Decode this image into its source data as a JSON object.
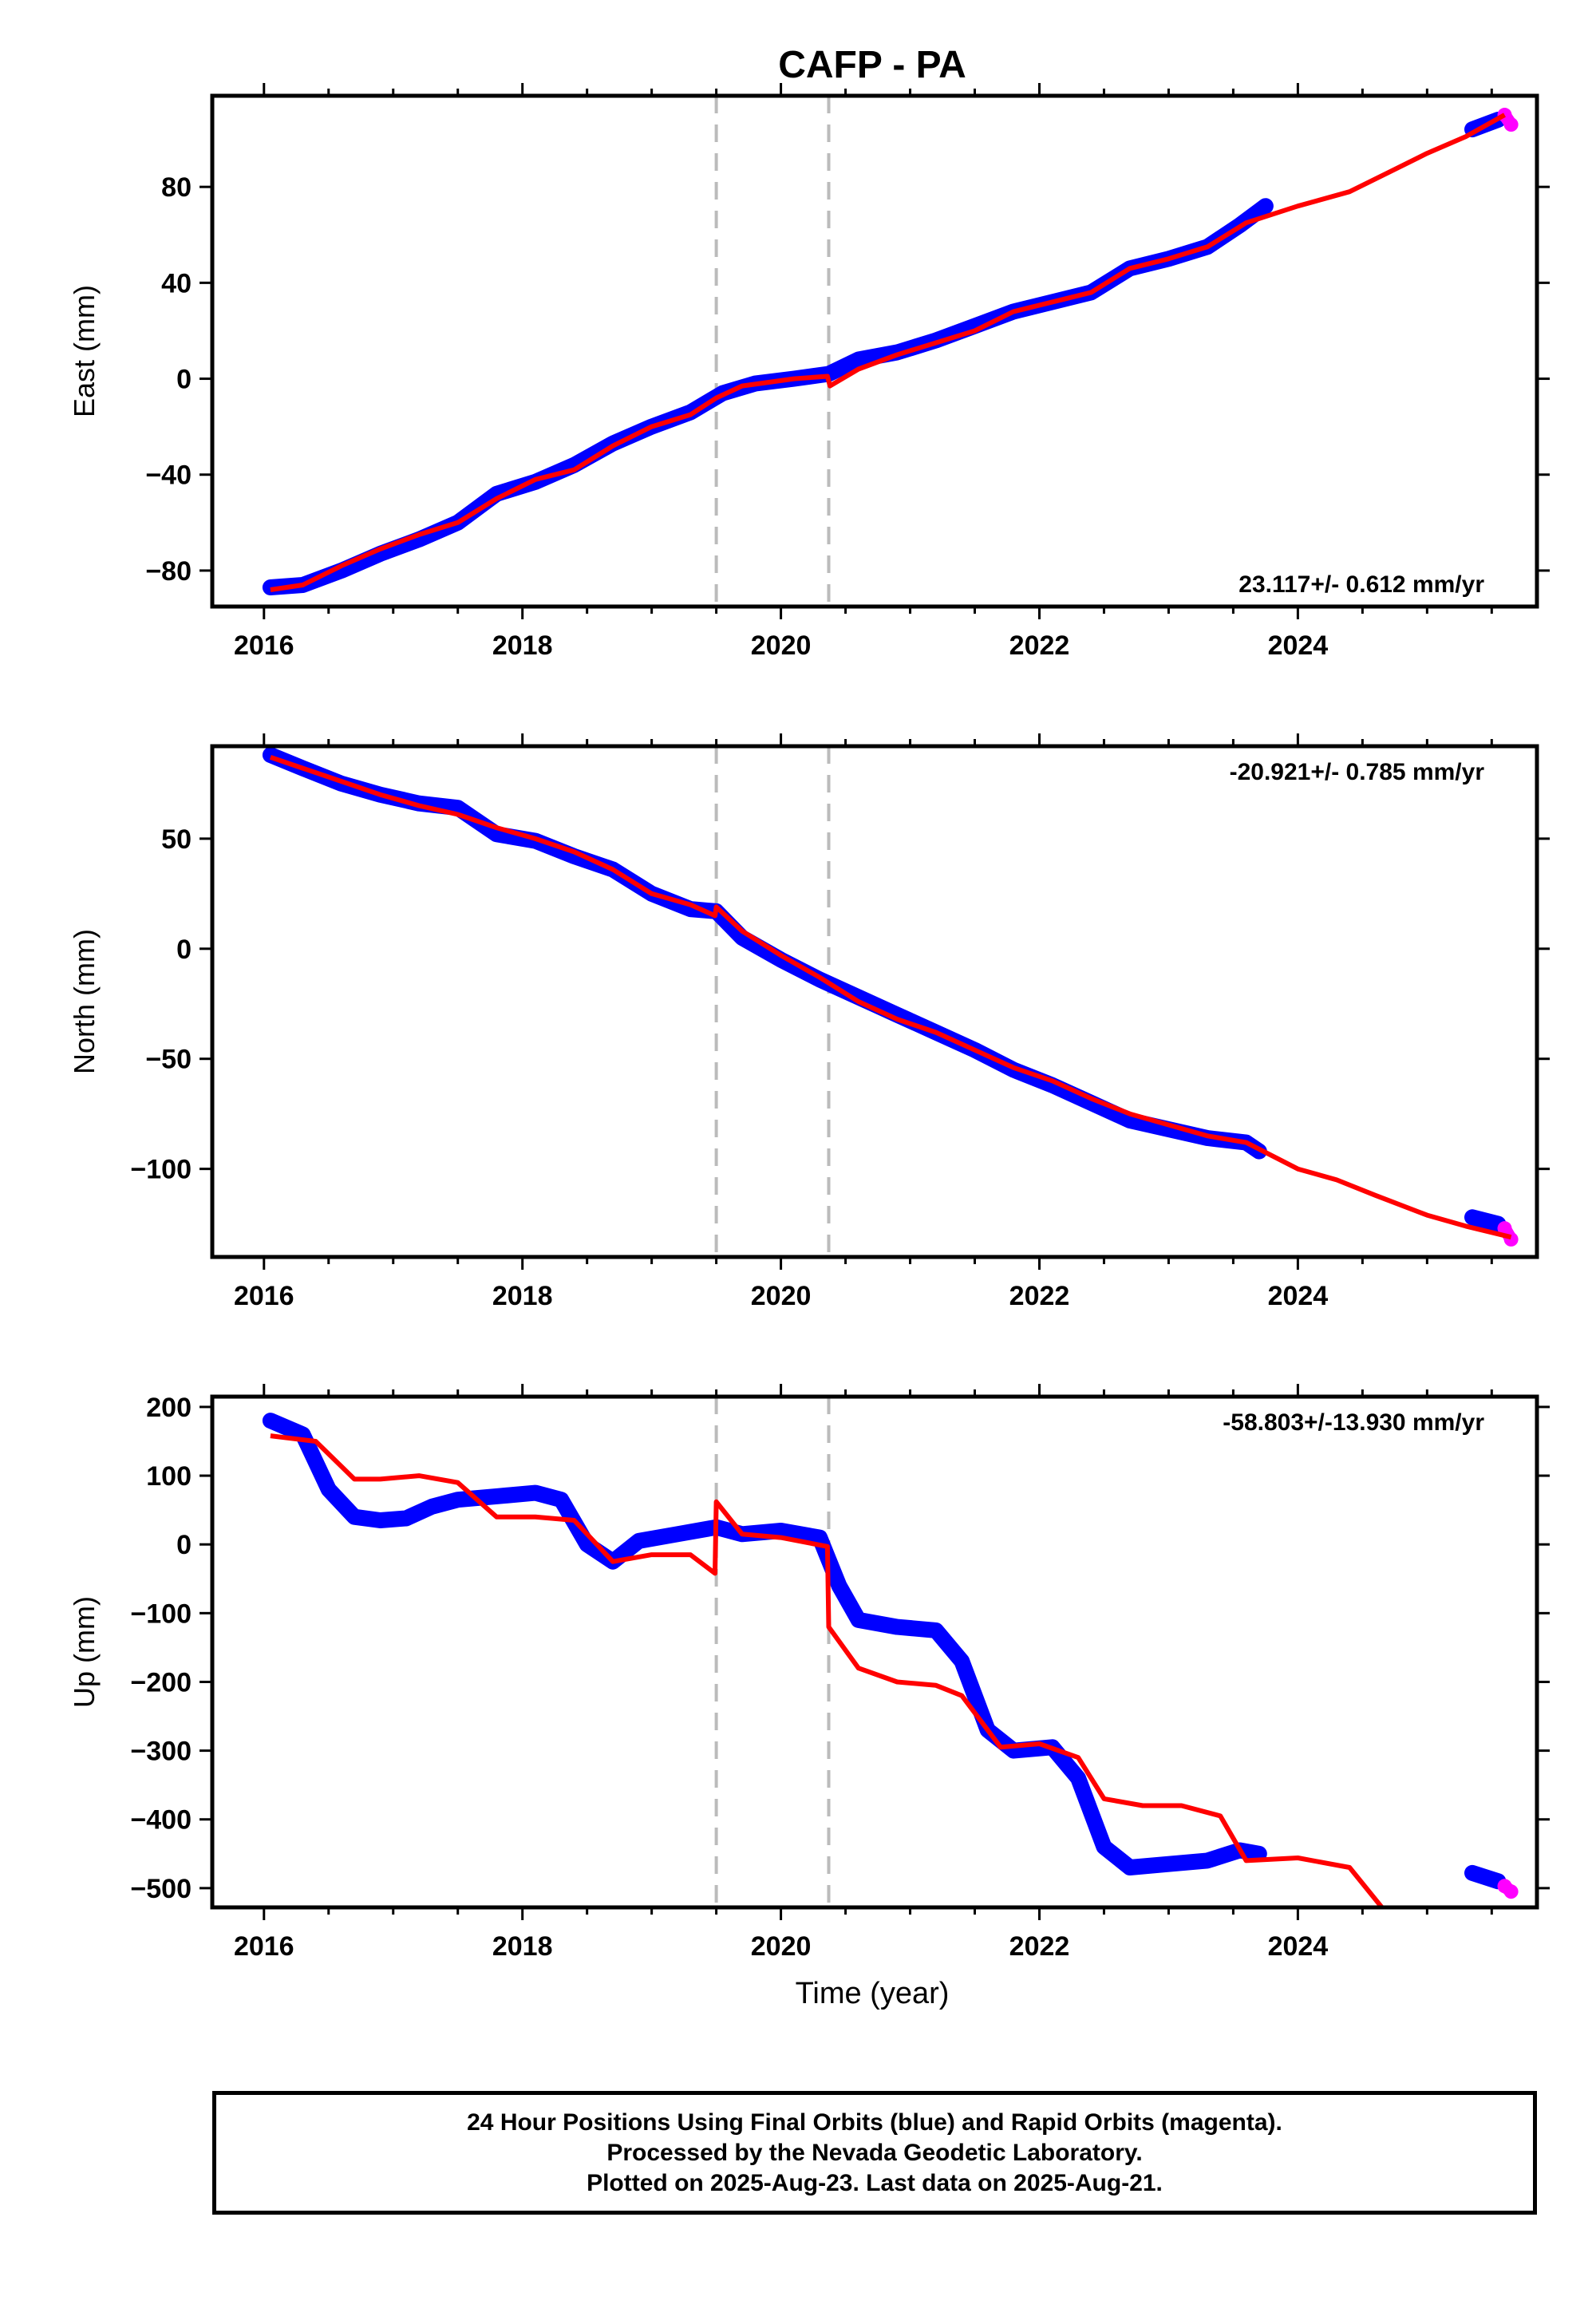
{
  "title": "CAFP - PA",
  "xlabel": "Time (year)",
  "footer": {
    "line1": "24 Hour Positions Using Final Orbits (blue) and Rapid Orbits (magenta).",
    "line2": "Processed by the Nevada Geodetic Laboratory.",
    "line3": "Plotted on 2025-Aug-23. Last data on 2025-Aug-21."
  },
  "colors": {
    "final": "#0000ff",
    "rapid": "#ff00ff",
    "model": "#ff0000",
    "event_lines": "#bbbbbb"
  },
  "chart_data": [
    {
      "type": "scatter",
      "ylabel": "East (mm)",
      "rate_label": "23.117+/- 0.612 mm/yr",
      "xlim": [
        2015.6,
        2025.85
      ],
      "ylim": [
        -95,
        118
      ],
      "xticks": [
        2016,
        2018,
        2020,
        2022,
        2024
      ],
      "yticks": [
        -80,
        -40,
        0,
        40,
        80
      ],
      "event_lines": [
        2019.5,
        2020.37
      ],
      "final_orbits": [
        [
          2016.05,
          -87
        ],
        [
          2016.3,
          -86
        ],
        [
          2016.6,
          -80
        ],
        [
          2016.9,
          -73
        ],
        [
          2017.2,
          -67
        ],
        [
          2017.5,
          -60
        ],
        [
          2017.8,
          -48
        ],
        [
          2018.1,
          -43
        ],
        [
          2018.4,
          -36
        ],
        [
          2018.7,
          -27
        ],
        [
          2019.0,
          -20
        ],
        [
          2019.3,
          -14
        ],
        [
          2019.55,
          -6
        ],
        [
          2019.8,
          -2
        ],
        [
          2020.1,
          0
        ],
        [
          2020.37,
          2
        ],
        [
          2020.6,
          8
        ],
        [
          2020.9,
          11
        ],
        [
          2021.2,
          16
        ],
        [
          2021.5,
          22
        ],
        [
          2021.8,
          28
        ],
        [
          2022.1,
          32
        ],
        [
          2022.4,
          36
        ],
        [
          2022.7,
          46
        ],
        [
          2023.0,
          50
        ],
        [
          2023.3,
          55
        ],
        [
          2023.55,
          64
        ],
        [
          2023.75,
          72
        ],
        [
          2025.35,
          104
        ],
        [
          2025.55,
          108
        ]
      ],
      "rapid_orbits": [
        [
          2025.6,
          110
        ],
        [
          2025.65,
          106
        ]
      ],
      "model": [
        [
          2016.05,
          -88
        ],
        [
          2016.3,
          -86
        ],
        [
          2016.6,
          -78
        ],
        [
          2016.9,
          -71
        ],
        [
          2017.2,
          -65
        ],
        [
          2017.5,
          -60
        ],
        [
          2017.8,
          -50
        ],
        [
          2018.1,
          -42
        ],
        [
          2018.4,
          -38
        ],
        [
          2018.7,
          -28
        ],
        [
          2019.0,
          -20
        ],
        [
          2019.3,
          -15
        ],
        [
          2019.5,
          -8
        ],
        [
          2019.7,
          -3
        ],
        [
          2020.1,
          0
        ],
        [
          2020.36,
          1
        ],
        [
          2020.38,
          -3
        ],
        [
          2020.6,
          4
        ],
        [
          2020.9,
          10
        ],
        [
          2021.2,
          15
        ],
        [
          2021.5,
          20
        ],
        [
          2021.8,
          28
        ],
        [
          2022.1,
          32
        ],
        [
          2022.4,
          36
        ],
        [
          2022.7,
          46
        ],
        [
          2023.0,
          50
        ],
        [
          2023.3,
          55
        ],
        [
          2023.6,
          65
        ],
        [
          2024.0,
          72
        ],
        [
          2024.4,
          78
        ],
        [
          2024.7,
          86
        ],
        [
          2025.0,
          94
        ],
        [
          2025.3,
          101
        ],
        [
          2025.6,
          110
        ]
      ]
    },
    {
      "type": "scatter",
      "ylabel": "North (mm)",
      "rate_label": "-20.921+/- 0.785 mm/yr",
      "xlim": [
        2015.6,
        2025.85
      ],
      "ylim": [
        -140,
        92
      ],
      "xticks": [
        2016,
        2018,
        2020,
        2022,
        2024
      ],
      "yticks": [
        -100,
        -50,
        0,
        50
      ],
      "event_lines": [
        2019.5,
        2020.37
      ],
      "final_orbits": [
        [
          2016.05,
          88
        ],
        [
          2016.3,
          82
        ],
        [
          2016.6,
          75
        ],
        [
          2016.9,
          70
        ],
        [
          2017.2,
          66
        ],
        [
          2017.5,
          64
        ],
        [
          2017.8,
          52
        ],
        [
          2018.1,
          49
        ],
        [
          2018.4,
          42
        ],
        [
          2018.7,
          36
        ],
        [
          2019.0,
          25
        ],
        [
          2019.3,
          18
        ],
        [
          2019.5,
          17
        ],
        [
          2019.7,
          5
        ],
        [
          2020.0,
          -5
        ],
        [
          2020.3,
          -14
        ],
        [
          2020.6,
          -22
        ],
        [
          2020.9,
          -30
        ],
        [
          2021.2,
          -38
        ],
        [
          2021.5,
          -46
        ],
        [
          2021.8,
          -55
        ],
        [
          2022.1,
          -62
        ],
        [
          2022.4,
          -70
        ],
        [
          2022.7,
          -78
        ],
        [
          2023.0,
          -82
        ],
        [
          2023.3,
          -86
        ],
        [
          2023.6,
          -88
        ],
        [
          2023.7,
          -92
        ],
        [
          2025.35,
          -122
        ],
        [
          2025.55,
          -125
        ]
      ],
      "rapid_orbits": [
        [
          2025.6,
          -127
        ],
        [
          2025.65,
          -132
        ]
      ],
      "model": [
        [
          2016.05,
          87
        ],
        [
          2016.3,
          82
        ],
        [
          2016.6,
          76
        ],
        [
          2016.9,
          70
        ],
        [
          2017.2,
          65
        ],
        [
          2017.5,
          61
        ],
        [
          2017.8,
          55
        ],
        [
          2018.1,
          50
        ],
        [
          2018.4,
          44
        ],
        [
          2018.7,
          36
        ],
        [
          2019.0,
          25
        ],
        [
          2019.3,
          20
        ],
        [
          2019.49,
          15
        ],
        [
          2019.5,
          19
        ],
        [
          2019.7,
          8
        ],
        [
          2020.0,
          -3
        ],
        [
          2020.3,
          -13
        ],
        [
          2020.6,
          -24
        ],
        [
          2020.9,
          -32
        ],
        [
          2021.2,
          -38
        ],
        [
          2021.5,
          -46
        ],
        [
          2021.8,
          -54
        ],
        [
          2022.1,
          -60
        ],
        [
          2022.4,
          -68
        ],
        [
          2022.7,
          -75
        ],
        [
          2023.0,
          -80
        ],
        [
          2023.3,
          -85
        ],
        [
          2023.6,
          -88
        ],
        [
          2024.0,
          -100
        ],
        [
          2024.3,
          -105
        ],
        [
          2024.6,
          -112
        ],
        [
          2025.0,
          -121
        ],
        [
          2025.3,
          -126
        ],
        [
          2025.65,
          -131
        ]
      ]
    },
    {
      "type": "scatter",
      "ylabel": "Up (mm)",
      "rate_label": "-58.803+/-13.930 mm/yr",
      "xlim": [
        2015.6,
        2025.85
      ],
      "ylim": [
        -528,
        215
      ],
      "xticks": [
        2016,
        2018,
        2020,
        2022,
        2024
      ],
      "yticks": [
        -500,
        -400,
        -300,
        -200,
        -100,
        0,
        100,
        200
      ],
      "event_lines": [
        2019.5,
        2020.37
      ],
      "final_orbits": [
        [
          2016.05,
          180
        ],
        [
          2016.3,
          160
        ],
        [
          2016.5,
          80
        ],
        [
          2016.7,
          40
        ],
        [
          2016.9,
          35
        ],
        [
          2017.1,
          38
        ],
        [
          2017.3,
          55
        ],
        [
          2017.5,
          65
        ],
        [
          2017.8,
          70
        ],
        [
          2018.1,
          75
        ],
        [
          2018.3,
          65
        ],
        [
          2018.5,
          0
        ],
        [
          2018.7,
          -25
        ],
        [
          2018.9,
          5
        ],
        [
          2019.2,
          15
        ],
        [
          2019.5,
          25
        ],
        [
          2019.7,
          15
        ],
        [
          2020.0,
          20
        ],
        [
          2020.3,
          10
        ],
        [
          2020.45,
          -60
        ],
        [
          2020.6,
          -110
        ],
        [
          2020.9,
          -120
        ],
        [
          2021.2,
          -125
        ],
        [
          2021.4,
          -170
        ],
        [
          2021.6,
          -270
        ],
        [
          2021.8,
          -300
        ],
        [
          2022.1,
          -295
        ],
        [
          2022.3,
          -340
        ],
        [
          2022.5,
          -440
        ],
        [
          2022.7,
          -470
        ],
        [
          2023.0,
          -465
        ],
        [
          2023.3,
          -460
        ],
        [
          2023.55,
          -445
        ],
        [
          2023.7,
          -450
        ],
        [
          2025.35,
          -478
        ],
        [
          2025.55,
          -490
        ]
      ],
      "rapid_orbits": [
        [
          2025.6,
          -497
        ],
        [
          2025.65,
          -505
        ]
      ],
      "model": [
        [
          2016.05,
          158
        ],
        [
          2016.4,
          150
        ],
        [
          2016.7,
          95
        ],
        [
          2016.9,
          95
        ],
        [
          2017.2,
          100
        ],
        [
          2017.5,
          90
        ],
        [
          2017.8,
          40
        ],
        [
          2018.1,
          40
        ],
        [
          2018.4,
          35
        ],
        [
          2018.7,
          -25
        ],
        [
          2019.0,
          -15
        ],
        [
          2019.3,
          -15
        ],
        [
          2019.49,
          -42
        ],
        [
          2019.5,
          62
        ],
        [
          2019.7,
          15
        ],
        [
          2020.0,
          10
        ],
        [
          2020.36,
          -3
        ],
        [
          2020.37,
          -120
        ],
        [
          2020.6,
          -180
        ],
        [
          2020.9,
          -200
        ],
        [
          2021.2,
          -205
        ],
        [
          2021.4,
          -220
        ],
        [
          2021.7,
          -295
        ],
        [
          2022.0,
          -290
        ],
        [
          2022.3,
          -310
        ],
        [
          2022.5,
          -370
        ],
        [
          2022.8,
          -380
        ],
        [
          2023.1,
          -380
        ],
        [
          2023.4,
          -395
        ],
        [
          2023.6,
          -460
        ],
        [
          2024.0,
          -456
        ],
        [
          2024.4,
          -470
        ],
        [
          2024.65,
          -528
        ]
      ]
    }
  ]
}
